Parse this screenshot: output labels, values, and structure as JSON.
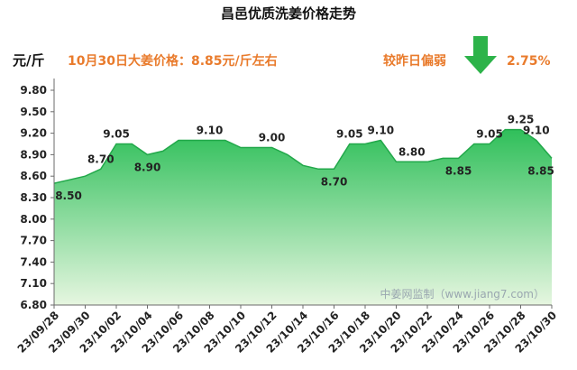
{
  "title": "昌邑优质洗姜价格走势",
  "unit": "元/斤",
  "headline": "10月30日大姜价格：8.85元/斤左右",
  "compare_label": "较昨日偏弱",
  "compare_pct": "2.75%",
  "watermark": "中姜网监制（www.jiang7.com）",
  "colors": {
    "accent_orange": "#e97b2c",
    "arrow_green": "#2db34a",
    "area_top": "#2fbf5a",
    "area_bottom": "#e6f6e0"
  },
  "chart_data": {
    "type": "area",
    "x": [
      "23/09/28",
      "23/09/29",
      "23/09/30",
      "23/10/01",
      "23/10/02",
      "23/10/03",
      "23/10/04",
      "23/10/05",
      "23/10/06",
      "23/10/07",
      "23/10/08",
      "23/10/09",
      "23/10/10",
      "23/10/11",
      "23/10/12",
      "23/10/13",
      "23/10/14",
      "23/10/15",
      "23/10/16",
      "23/10/17",
      "23/10/18",
      "23/10/19",
      "23/10/20",
      "23/10/21",
      "23/10/22",
      "23/10/23",
      "23/10/24",
      "23/10/25",
      "23/10/26",
      "23/10/27",
      "23/10/28",
      "23/10/29",
      "23/10/30"
    ],
    "values": [
      8.5,
      8.55,
      8.6,
      8.7,
      9.05,
      9.05,
      8.9,
      8.95,
      9.1,
      9.1,
      9.1,
      9.1,
      9.0,
      9.0,
      9.0,
      8.9,
      8.75,
      8.7,
      8.7,
      9.05,
      9.05,
      9.1,
      8.8,
      8.8,
      8.8,
      8.85,
      8.85,
      9.05,
      9.05,
      9.25,
      9.25,
      9.1,
      8.85
    ],
    "x_tick_labels": [
      "23/09/28",
      "23/09/30",
      "23/10/02",
      "23/10/04",
      "23/10/06",
      "23/10/08",
      "23/10/10",
      "23/10/12",
      "23/10/14",
      "23/10/16",
      "23/10/18",
      "23/10/20",
      "23/10/22",
      "23/10/24",
      "23/10/26",
      "23/10/28",
      "23/10/30"
    ],
    "y_ticks": [
      "6.80",
      "7.10",
      "7.40",
      "7.70",
      "8.00",
      "8.30",
      "8.60",
      "8.90",
      "9.20",
      "9.50",
      "9.80"
    ],
    "ylim": [
      6.8,
      9.8
    ],
    "data_labels": [
      {
        "x": "23/09/28",
        "text": "8.50"
      },
      {
        "x": "23/10/01",
        "text": "8.70"
      },
      {
        "x": "23/10/02",
        "text": "9.05"
      },
      {
        "x": "23/10/04",
        "text": "8.90"
      },
      {
        "x": "23/10/08",
        "text": "9.10"
      },
      {
        "x": "23/10/12",
        "text": "9.00"
      },
      {
        "x": "23/10/16",
        "text": "8.70"
      },
      {
        "x": "23/10/17",
        "text": "9.05"
      },
      {
        "x": "23/10/19",
        "text": "9.10"
      },
      {
        "x": "23/10/21",
        "text": "8.80"
      },
      {
        "x": "23/10/24",
        "text": "8.85"
      },
      {
        "x": "23/10/26",
        "text": "9.05"
      },
      {
        "x": "23/10/28",
        "text": "9.25"
      },
      {
        "x": "23/10/29",
        "text": "9.10"
      },
      {
        "x": "23/10/30",
        "text": "8.85"
      }
    ],
    "grid": false,
    "legend": "none"
  }
}
